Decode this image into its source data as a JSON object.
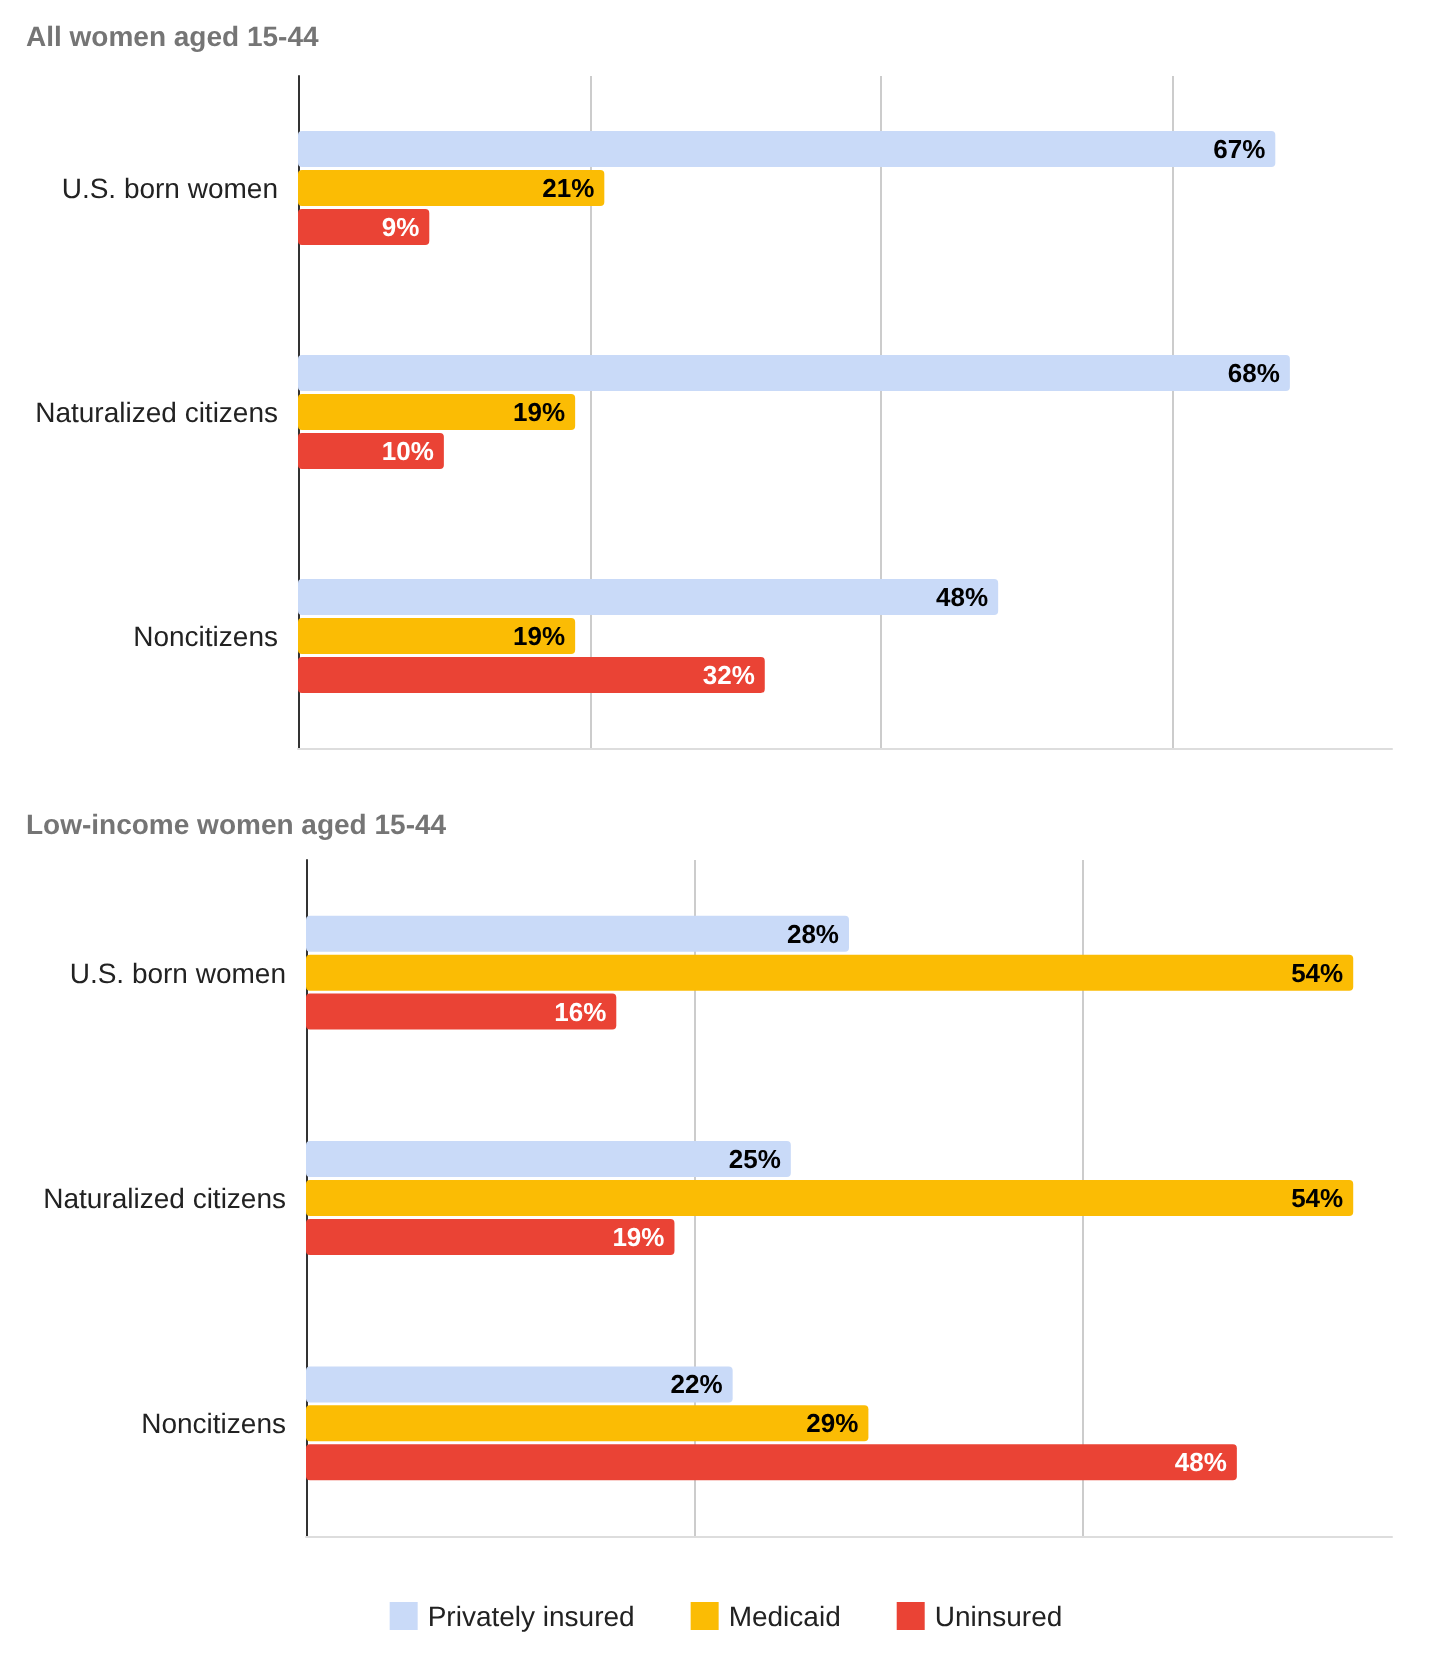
{
  "chart_data": [
    {
      "type": "bar",
      "orientation": "horizontal",
      "title": "All women aged 15-44",
      "categories": [
        "U.S. born women",
        "Naturalized citizens",
        "Noncitizens"
      ],
      "series": [
        {
          "color": "#c9daf8",
          "values": [
            67,
            68,
            48
          ],
          "value_labels": [
            "67%",
            "68%",
            "48%"
          ]
        },
        {
          "color": "#fbbc04",
          "values": [
            21,
            19,
            19
          ],
          "value_labels": [
            "21%",
            "19%",
            "19%"
          ]
        },
        {
          "color": "#ea4335",
          "values": [
            9,
            10,
            32
          ],
          "value_labels": [
            "9%",
            "10%",
            "32%"
          ]
        }
      ],
      "xticks": [
        {
          "value": 0,
          "label": null
        },
        {
          "value": 20,
          "label": null
        },
        {
          "value": 40,
          "label": null
        },
        {
          "value": 60,
          "label": null
        }
      ],
      "xlim": [
        0,
        75
      ],
      "tick_labels": "y",
      "grid": "x",
      "legend": false
    },
    {
      "type": "bar",
      "orientation": "horizontal",
      "title": "Low-income women aged 15-44",
      "categories": [
        "U.S. born women",
        "Naturalized citizens",
        "Noncitizens"
      ],
      "series": [
        {
          "name": "Privately insured",
          "color": "#c9daf8",
          "values": [
            28,
            25,
            22
          ],
          "value_labels": [
            "28%",
            "25%",
            "22%"
          ]
        },
        {
          "name": "Medicaid",
          "color": "#fbbc04",
          "values": [
            54,
            54,
            29
          ],
          "value_labels": [
            "54%",
            "54%",
            "29%"
          ]
        },
        {
          "name": "Uninsured",
          "color": "#ea4335",
          "values": [
            16,
            19,
            48
          ],
          "value_labels": [
            "16%",
            "19%",
            "48%"
          ]
        }
      ],
      "xticks": [
        {
          "value": 0,
          "label": null
        },
        {
          "value": 20,
          "label": null
        },
        {
          "value": 40,
          "label": null
        }
      ],
      "xlim": [
        0,
        56
      ],
      "tick_labels": "y",
      "grid": "x",
      "legend": "bottom"
    }
  ]
}
